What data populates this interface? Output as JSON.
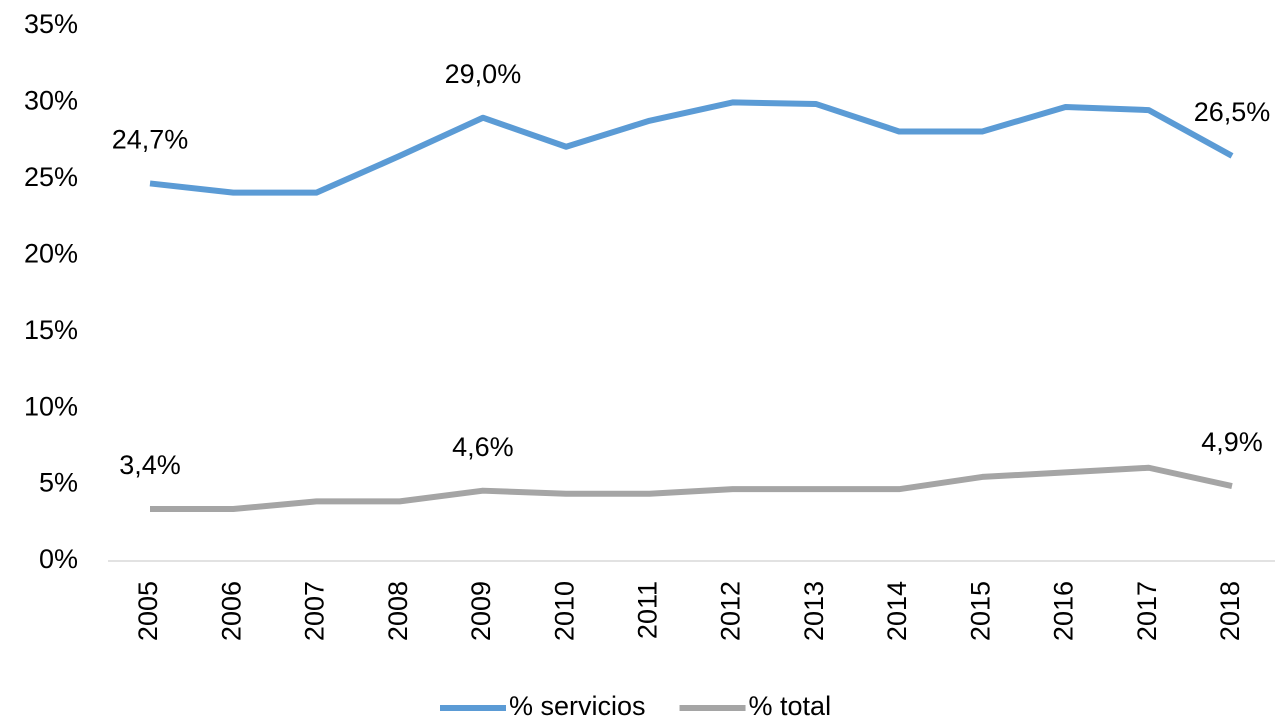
{
  "chart_data": {
    "type": "line",
    "categories": [
      "2005",
      "2006",
      "2007",
      "2008",
      "2009",
      "2010",
      "2011",
      "2012",
      "2013",
      "2014",
      "2015",
      "2016",
      "2017",
      "2018"
    ],
    "series": [
      {
        "name": "% servicios",
        "color": "#5b9bd5",
        "values": [
          24.7,
          24.1,
          24.1,
          26.5,
          29.0,
          27.1,
          28.8,
          30.0,
          29.9,
          28.1,
          28.1,
          29.7,
          29.5,
          26.5
        ],
        "value_labels": [
          "24,7%",
          null,
          null,
          null,
          "29,0%",
          null,
          null,
          null,
          null,
          null,
          null,
          null,
          null,
          "26,5%"
        ]
      },
      {
        "name": "% total",
        "color": "#a5a5a5",
        "values": [
          3.4,
          3.4,
          3.9,
          3.9,
          4.6,
          4.4,
          4.4,
          4.7,
          4.7,
          4.7,
          5.5,
          5.8,
          6.1,
          4.9
        ],
        "value_labels": [
          "3,4%",
          null,
          null,
          null,
          "4,6%",
          null,
          null,
          null,
          null,
          null,
          null,
          null,
          null,
          "4,9%"
        ]
      }
    ],
    "ylim": [
      0,
      35
    ],
    "yticks": [
      {
        "value": 0,
        "label": "0%"
      },
      {
        "value": 5,
        "label": "5%"
      },
      {
        "value": 10,
        "label": "10%"
      },
      {
        "value": 15,
        "label": "15%"
      },
      {
        "value": 20,
        "label": "20%"
      },
      {
        "value": 25,
        "label": "25%"
      },
      {
        "value": 30,
        "label": "30%"
      },
      {
        "value": 35,
        "label": "35%"
      }
    ],
    "grid": false,
    "legend": "bottom"
  }
}
